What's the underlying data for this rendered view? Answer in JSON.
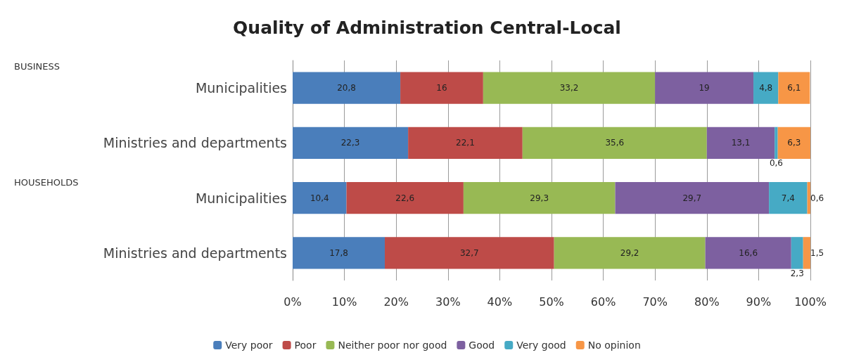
{
  "chart_data": {
    "type": "bar",
    "orientation": "horizontal",
    "stacked": true,
    "title": "Quality of Administration Central-Local",
    "categories": [
      "Municipalities",
      "Ministries and departments",
      "Municipalities",
      "Ministries and departments"
    ],
    "annotations": [
      "BUSINESS",
      "HOUSEHOLDS"
    ],
    "series": [
      {
        "name": "Very poor",
        "color": "#4a7ebb",
        "values": [
          20.8,
          22.3,
          10.4,
          17.8
        ],
        "value_labels": [
          "20,8",
          "22,3",
          "10,4",
          "17,8"
        ]
      },
      {
        "name": "Poor",
        "color": "#be4b48",
        "values": [
          16,
          22.1,
          22.6,
          32.7
        ],
        "value_labels": [
          "16",
          "22,1",
          "22,6",
          "32,7"
        ]
      },
      {
        "name": "Neither poor nor good",
        "color": "#98b954",
        "values": [
          33.2,
          35.6,
          29.3,
          29.2
        ],
        "value_labels": [
          "33,2",
          "35,6",
          "29,3",
          "29,2"
        ]
      },
      {
        "name": "Good",
        "color": "#7d60a0",
        "values": [
          19,
          13.1,
          29.7,
          16.6
        ],
        "value_labels": [
          "19",
          "13,1",
          "29,7",
          "16,6"
        ]
      },
      {
        "name": "Very good",
        "color": "#46aac5",
        "values": [
          4.8,
          0.6,
          7.4,
          2.3
        ],
        "value_labels": [
          "4,8",
          "0,6",
          "7,4",
          "2,3"
        ]
      },
      {
        "name": "No opinion",
        "color": "#f79646",
        "values": [
          6.1,
          6.3,
          0.6,
          1.5
        ],
        "value_labels": [
          "6,1",
          "6,3",
          "0,6",
          "1,5"
        ]
      }
    ],
    "xlim": [
      0,
      100
    ],
    "xticks": [
      {
        "value": 0,
        "label": "0%"
      },
      {
        "value": 10,
        "label": "10%"
      },
      {
        "value": 20,
        "label": "20%"
      },
      {
        "value": 30,
        "label": "30%"
      },
      {
        "value": 40,
        "label": "40%"
      },
      {
        "value": 50,
        "label": "50%"
      },
      {
        "value": 60,
        "label": "60%"
      },
      {
        "value": 70,
        "label": "70%"
      },
      {
        "value": 80,
        "label": "80%"
      },
      {
        "value": 90,
        "label": "90%"
      },
      {
        "value": 100,
        "label": "100%"
      }
    ],
    "grid": "x",
    "legend": "bottom"
  }
}
